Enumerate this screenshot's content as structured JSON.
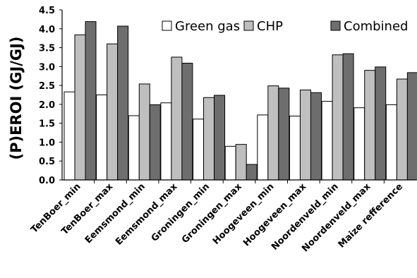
{
  "chart_data": {
    "type": "bar",
    "title": "",
    "xlabel": "",
    "ylabel": "(P)EROI (GJ/GJ)",
    "ylim": [
      0,
      4.5
    ],
    "yticks": [
      "0.0",
      "0.5",
      "1.0",
      "1.5",
      "2.0",
      "2.5",
      "3.0",
      "3.5",
      "4.0",
      "4.5"
    ],
    "grid": false,
    "legend_position": "top-right",
    "categories": [
      "TenBoer_min",
      "TenBoer_max",
      "Eemsmond_min",
      "Eemsmond_max",
      "Groningen_min",
      "Groningen_max",
      "Hoogeveen_min",
      "Hoogeveen_max",
      "Noordenveld_min",
      "Noordenveld_max",
      "Maize refference"
    ],
    "series": [
      {
        "name": "Green gas",
        "color": "#ffffff",
        "values": [
          2.33,
          2.25,
          1.7,
          2.04,
          1.61,
          0.89,
          1.72,
          1.69,
          2.08,
          1.91,
          1.99
        ]
      },
      {
        "name": "CHP",
        "color": "#bfbfbf",
        "values": [
          3.84,
          3.6,
          2.54,
          3.25,
          2.18,
          0.94,
          2.49,
          2.38,
          3.31,
          2.9,
          2.67
        ]
      },
      {
        "name": "Combined",
        "color": "#6e6e6e",
        "values": [
          4.19,
          4.07,
          1.99,
          3.09,
          2.24,
          0.41,
          2.43,
          2.31,
          3.34,
          2.99,
          2.84
        ]
      }
    ]
  }
}
